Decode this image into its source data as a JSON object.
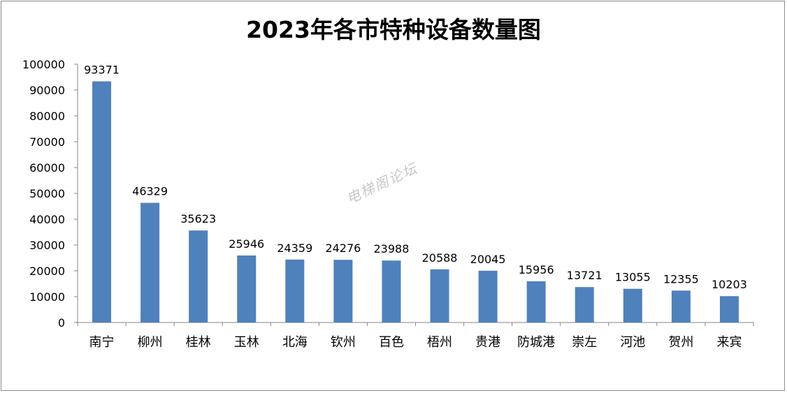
{
  "chart_data": {
    "type": "bar",
    "title": "2023年各市特种设备数量图",
    "xlabel": "",
    "ylabel": "",
    "ylim": [
      0,
      100000
    ],
    "yticks": [
      0,
      10000,
      20000,
      30000,
      40000,
      50000,
      60000,
      70000,
      80000,
      90000,
      100000
    ],
    "categories": [
      "南宁",
      "柳州",
      "桂林",
      "玉林",
      "北海",
      "钦州",
      "百色",
      "梧州",
      "贵港",
      "防城港",
      "崇左",
      "河池",
      "贺州",
      "来宾"
    ],
    "values": [
      93371,
      46329,
      35623,
      25946,
      24359,
      24276,
      23988,
      20588,
      20045,
      15956,
      13721,
      13055,
      12355,
      10203
    ],
    "bar_color": "#4f81bd",
    "grid": false,
    "legend": "none"
  },
  "watermark": "电梯阁论坛"
}
